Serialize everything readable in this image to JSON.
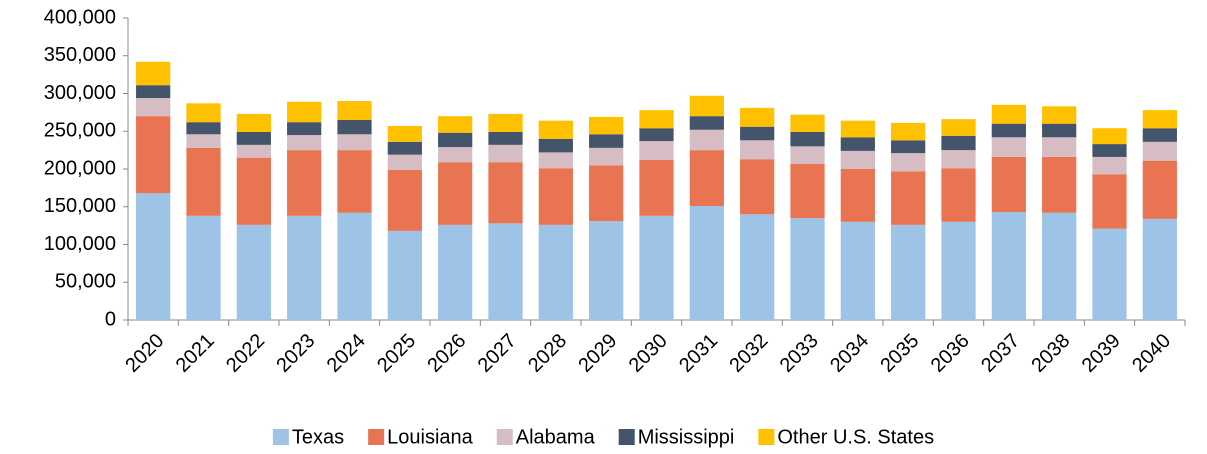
{
  "chart_data": {
    "type": "stacked_bar",
    "categories": [
      "2020",
      "2021",
      "2022",
      "2023",
      "2024",
      "2025",
      "2026",
      "2027",
      "2028",
      "2029",
      "2030",
      "2031",
      "2032",
      "2033",
      "2034",
      "2035",
      "2036",
      "2037",
      "2038",
      "2039",
      "2040"
    ],
    "series": [
      {
        "name": "Texas",
        "color": "#9dc3e6",
        "values": [
          168000,
          138000,
          126000,
          138000,
          142000,
          118000,
          126000,
          128000,
          126000,
          131000,
          138000,
          151000,
          140000,
          135000,
          130000,
          126000,
          130000,
          143000,
          142000,
          121000,
          134000
        ]
      },
      {
        "name": "Louisiana",
        "color": "#e97452",
        "values": [
          102000,
          90000,
          89000,
          87000,
          83000,
          81000,
          83000,
          81000,
          75000,
          74000,
          74000,
          74000,
          73000,
          72000,
          70000,
          71000,
          71000,
          73000,
          74000,
          72000,
          77000
        ]
      },
      {
        "name": "Alabama",
        "color": "#d6bcc3",
        "values": [
          24000,
          18000,
          17000,
          20000,
          21000,
          20000,
          20000,
          23000,
          21000,
          23000,
          25000,
          27000,
          25000,
          23000,
          24000,
          24000,
          24000,
          26000,
          26000,
          23000,
          25000
        ]
      },
      {
        "name": "Mississippi",
        "color": "#44546a",
        "values": [
          17000,
          16000,
          17000,
          17000,
          19000,
          17000,
          19000,
          17000,
          18000,
          18000,
          17000,
          18000,
          18000,
          19000,
          18000,
          17000,
          19000,
          18000,
          18000,
          17000,
          18000
        ]
      },
      {
        "name": "Other U.S. States",
        "color": "#ffc000",
        "values": [
          31000,
          25000,
          24000,
          27000,
          25000,
          21000,
          22000,
          24000,
          24000,
          23000,
          24000,
          27000,
          25000,
          23000,
          22000,
          23000,
          22000,
          25000,
          23000,
          21000,
          24000
        ]
      }
    ],
    "ylim": [
      0,
      400000
    ],
    "yticks": [
      0,
      {
        "value": 50000,
        "label": "50,000"
      },
      {
        "value": 100000,
        "label": "100,000"
      },
      {
        "value": 150000,
        "label": "150,000"
      },
      {
        "value": 200000,
        "label": "200,000"
      },
      {
        "value": 250000,
        "label": "250,000"
      },
      {
        "value": 300000,
        "label": "300,000"
      },
      {
        "value": 350000,
        "label": "350,000"
      },
      {
        "value": 400000,
        "label": "400,000"
      }
    ],
    "legend": "bottom"
  }
}
